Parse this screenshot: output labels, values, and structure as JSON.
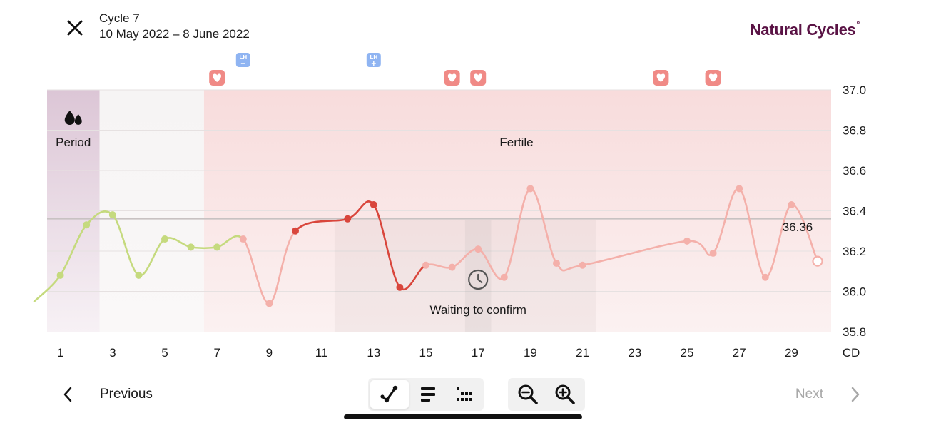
{
  "header": {
    "cycle_title": "Cycle 7",
    "cycle_dates": "10 May 2022 – 8 June 2022",
    "logo": "Natural Cycles",
    "logo_mark": "°",
    "close_icon": "close-icon"
  },
  "chart_data": {
    "type": "line",
    "x": [
      0,
      1,
      2,
      3,
      4,
      5,
      6,
      7,
      8,
      9,
      10,
      12,
      13,
      14,
      15,
      16,
      17,
      18,
      19,
      20,
      21,
      25,
      26,
      27,
      28,
      29,
      30
    ],
    "y": [
      35.95,
      36.08,
      36.33,
      36.38,
      36.08,
      36.26,
      36.22,
      36.22,
      36.26,
      35.94,
      36.3,
      36.36,
      36.43,
      36.02,
      36.13,
      36.12,
      36.21,
      36.07,
      36.51,
      36.14,
      36.13,
      36.25,
      36.19,
      36.51,
      36.07,
      36.43,
      36.15
    ],
    "xlabel": "CD",
    "x_ticks": [
      1,
      3,
      5,
      7,
      9,
      11,
      13,
      15,
      17,
      19,
      21,
      23,
      25,
      27,
      29
    ],
    "y_ticks": [
      "37.0",
      "36.8",
      "36.6",
      "36.4",
      "36.2",
      "36.0",
      "35.8"
    ],
    "ylim": [
      35.8,
      37.0
    ],
    "cover_line": {
      "value": 36.36,
      "label": "36.36"
    },
    "colors": {
      "not_fertile": "#c5da7e",
      "fertile": "#f4b0aa",
      "fertile_strong": "#d9463c",
      "period": "#5a1345"
    },
    "zones": [
      {
        "name": "period",
        "label": "Period",
        "icon": "blood-drops-icon",
        "from_day": 1,
        "to_day": 2
      },
      {
        "name": "fertile",
        "label": "Fertile",
        "from_day": 7,
        "to_day": 30
      }
    ],
    "waiting": {
      "label": "Waiting to confirm",
      "icon": "clock-icon",
      "from_day": 12,
      "to_day": 22
    },
    "sex_markers": [
      7,
      16,
      17,
      24,
      26
    ],
    "lh_tests": [
      {
        "day": 8,
        "label": "LH",
        "result": "negative"
      },
      {
        "day": 13,
        "label": "LH",
        "result": "positive"
      }
    ]
  },
  "footer": {
    "previous_label": "Previous",
    "next_label": "Next",
    "views": [
      {
        "name": "graph-view",
        "icon": "line-graph-icon",
        "active": true
      },
      {
        "name": "list-view",
        "icon": "list-icon",
        "active": false
      },
      {
        "name": "comparison-view",
        "icon": "dots-grid-icon",
        "active": false
      }
    ],
    "zoom_out_icon": "zoom-out-icon",
    "zoom_in_icon": "zoom-in-icon"
  }
}
